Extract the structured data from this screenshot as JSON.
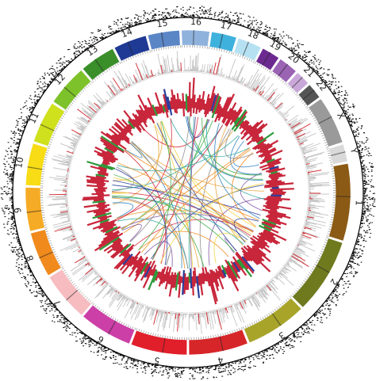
{
  "figure": {
    "kind": "circos-genome-plot",
    "background": "#ffffff"
  },
  "chromosomes": [
    {
      "label": "1",
      "color": "#8b5a14"
    },
    {
      "label": "2",
      "color": "#6f7a1e"
    },
    {
      "label": "3",
      "color": "#a8a42a"
    },
    {
      "label": "4",
      "color": "#d6262a"
    },
    {
      "label": "5",
      "color": "#e11f2a"
    },
    {
      "label": "6",
      "color": "#cc3fa6"
    },
    {
      "label": "7",
      "color": "#f6bcc0"
    },
    {
      "label": "8",
      "color": "#f08a1c"
    },
    {
      "label": "9",
      "color": "#f5ab25"
    },
    {
      "label": "10",
      "color": "#f7dc16"
    },
    {
      "label": "11",
      "color": "#cfe01d"
    },
    {
      "label": "12",
      "color": "#7dc22a"
    },
    {
      "label": "13",
      "color": "#3a8f2a"
    },
    {
      "label": "14",
      "color": "#1f3a95"
    },
    {
      "label": "15",
      "color": "#5b86c6"
    },
    {
      "label": "16",
      "color": "#8fb2dc"
    },
    {
      "label": "17",
      "color": "#3fb1dd"
    },
    {
      "label": "18",
      "color": "#b6e1f2"
    },
    {
      "label": "19",
      "color": "#6c2a90"
    },
    {
      "label": "20",
      "color": "#9a63b4"
    },
    {
      "label": "21",
      "color": "#c9a7d8"
    },
    {
      "label": "22",
      "color": "#555555"
    },
    {
      "label": "X",
      "color": "#9a9a9a"
    },
    {
      "label": "Y",
      "color": "#d9d9d9"
    }
  ],
  "tracks": {
    "scatter_color": "#111111",
    "histogram_color": "#c9c9c9",
    "histogram_accent": "#d4353c",
    "inner_bar_color": "#c8263b",
    "inner_bar_alt": "#2e9a3a",
    "inner_bar_blue": "#2c3e9a"
  },
  "links": {
    "colors": [
      "#e8a33b",
      "#2d7fc1",
      "#3fae49",
      "#d6263a",
      "#7a4d9e",
      "#f2d23c",
      "#2aa7a0",
      "#8a8a8a",
      "#f08a1c",
      "#2c3e9a"
    ]
  }
}
